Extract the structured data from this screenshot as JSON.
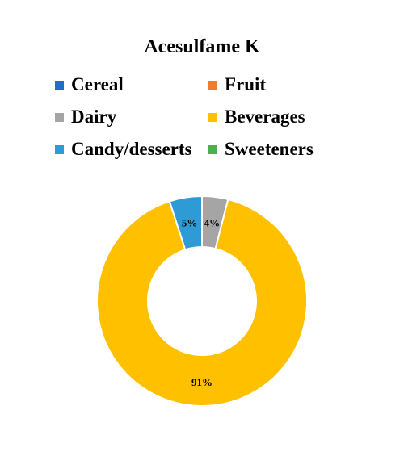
{
  "chart_data": {
    "type": "pie",
    "donut": true,
    "title": "Acesulfame K",
    "legend_position": "top",
    "categories": [
      "Cereal",
      "Fruit",
      "Dairy",
      "Beverages",
      "Candy/desserts",
      "Sweeteners"
    ],
    "values": [
      0,
      0,
      4,
      91,
      5,
      0
    ],
    "value_labels": [
      "",
      "",
      "4%",
      "91%",
      "5%",
      ""
    ],
    "colors": [
      "#1f6fc4",
      "#ed7d31",
      "#a5a5a5",
      "#ffc000",
      "#2e9bd6",
      "#4caf50"
    ]
  }
}
